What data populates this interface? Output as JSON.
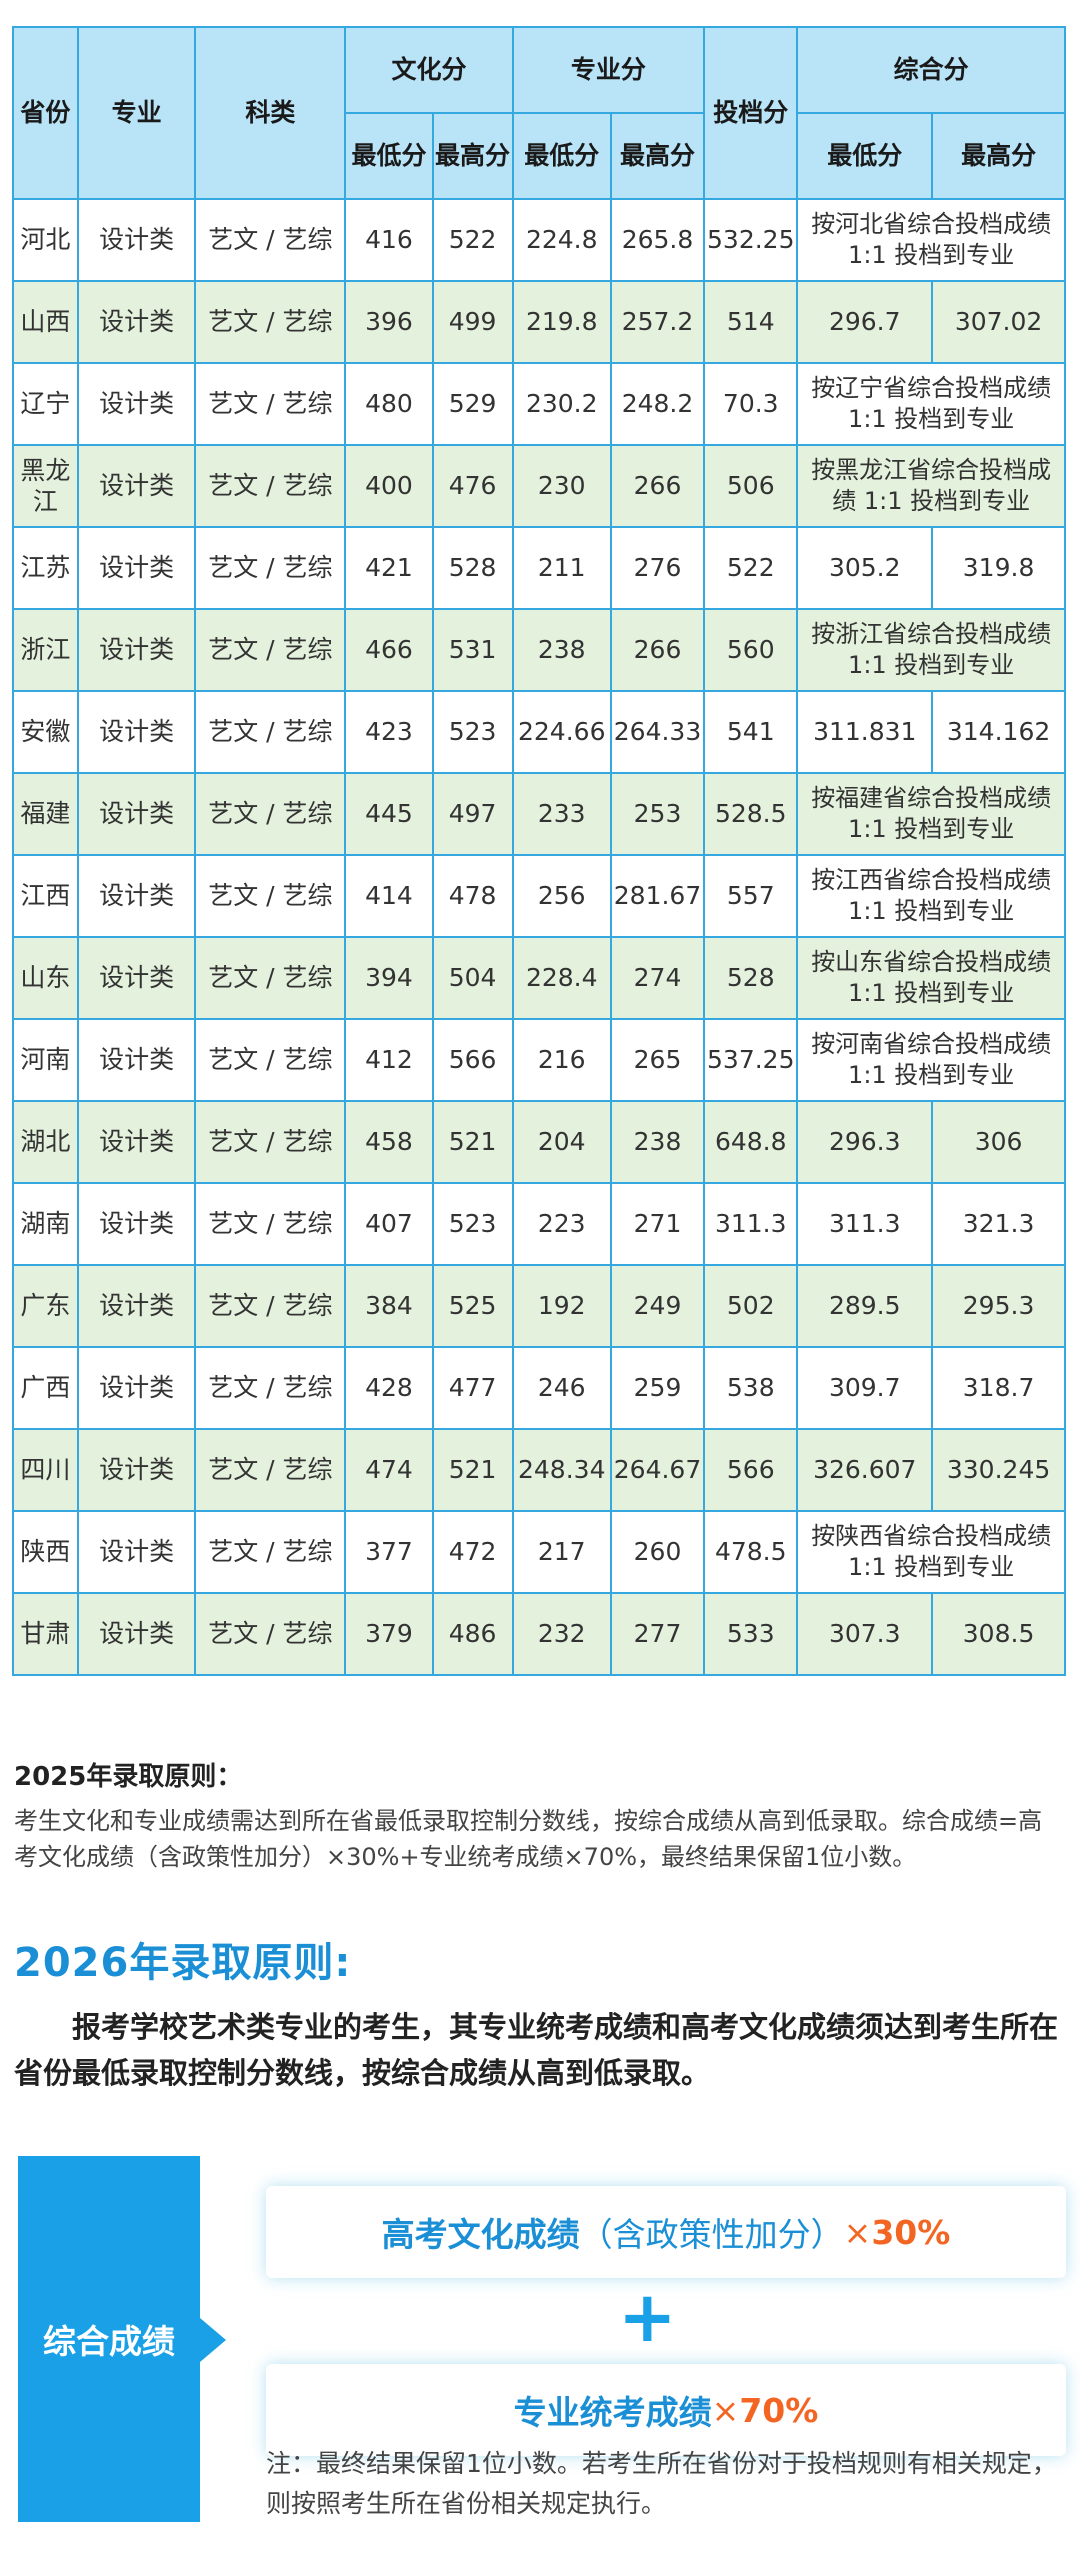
{
  "table": {
    "headers": {
      "province": "省份",
      "major": "专业",
      "category": "科类",
      "culture": "文化分",
      "professional": "专业分",
      "filing": "投档分",
      "composite": "综合分",
      "min": "最低分",
      "max": "最高分"
    },
    "rows": [
      {
        "province": "河北",
        "major": "设计类",
        "category": "艺文 / 艺综",
        "culture_min": "416",
        "culture_max": "522",
        "prof_min": "224.8",
        "prof_max": "265.8",
        "filing": "532.25",
        "comp_min": "",
        "comp_max": "",
        "comp_note": "按河北省综合投档成绩1:1 投档到专业"
      },
      {
        "province": "山西",
        "major": "设计类",
        "category": "艺文 / 艺综",
        "culture_min": "396",
        "culture_max": "499",
        "prof_min": "219.8",
        "prof_max": "257.2",
        "filing": "514",
        "comp_min": "296.7",
        "comp_max": "307.02",
        "comp_note": ""
      },
      {
        "province": "辽宁",
        "major": "设计类",
        "category": "艺文 / 艺综",
        "culture_min": "480",
        "culture_max": "529",
        "prof_min": "230.2",
        "prof_max": "248.2",
        "filing": "70.3",
        "comp_min": "",
        "comp_max": "",
        "comp_note": "按辽宁省综合投档成绩1:1 投档到专业"
      },
      {
        "province": "黑龙江",
        "major": "设计类",
        "category": "艺文 / 艺综",
        "culture_min": "400",
        "culture_max": "476",
        "prof_min": "230",
        "prof_max": "266",
        "filing": "506",
        "comp_min": "",
        "comp_max": "",
        "comp_note": "按黑龙江省综合投档成绩 1:1 投档到专业"
      },
      {
        "province": "江苏",
        "major": "设计类",
        "category": "艺文 / 艺综",
        "culture_min": "421",
        "culture_max": "528",
        "prof_min": "211",
        "prof_max": "276",
        "filing": "522",
        "comp_min": "305.2",
        "comp_max": "319.8",
        "comp_note": ""
      },
      {
        "province": "浙江",
        "major": "设计类",
        "category": "艺文 / 艺综",
        "culture_min": "466",
        "culture_max": "531",
        "prof_min": "238",
        "prof_max": "266",
        "filing": "560",
        "comp_min": "",
        "comp_max": "",
        "comp_note": "按浙江省综合投档成绩1:1 投档到专业"
      },
      {
        "province": "安徽",
        "major": "设计类",
        "category": "艺文 / 艺综",
        "culture_min": "423",
        "culture_max": "523",
        "prof_min": "224.66",
        "prof_max": "264.33",
        "filing": "541",
        "comp_min": "311.831",
        "comp_max": "314.162",
        "comp_note": ""
      },
      {
        "province": "福建",
        "major": "设计类",
        "category": "艺文 / 艺综",
        "culture_min": "445",
        "culture_max": "497",
        "prof_min": "233",
        "prof_max": "253",
        "filing": "528.5",
        "comp_min": "",
        "comp_max": "",
        "comp_note": "按福建省综合投档成绩1:1 投档到专业"
      },
      {
        "province": "江西",
        "major": "设计类",
        "category": "艺文 / 艺综",
        "culture_min": "414",
        "culture_max": "478",
        "prof_min": "256",
        "prof_max": "281.67",
        "filing": "557",
        "comp_min": "",
        "comp_max": "",
        "comp_note": "按江西省综合投档成绩1:1 投档到专业"
      },
      {
        "province": "山东",
        "major": "设计类",
        "category": "艺文 / 艺综",
        "culture_min": "394",
        "culture_max": "504",
        "prof_min": "228.4",
        "prof_max": "274",
        "filing": "528",
        "comp_min": "",
        "comp_max": "",
        "comp_note": "按山东省综合投档成绩1:1 投档到专业"
      },
      {
        "province": "河南",
        "major": "设计类",
        "category": "艺文 / 艺综",
        "culture_min": "412",
        "culture_max": "566",
        "prof_min": "216",
        "prof_max": "265",
        "filing": "537.25",
        "comp_min": "",
        "comp_max": "",
        "comp_note": "按河南省综合投档成绩1:1 投档到专业"
      },
      {
        "province": "湖北",
        "major": "设计类",
        "category": "艺文 / 艺综",
        "culture_min": "458",
        "culture_max": "521",
        "prof_min": "204",
        "prof_max": "238",
        "filing": "648.8",
        "comp_min": "296.3",
        "comp_max": "306",
        "comp_note": ""
      },
      {
        "province": "湖南",
        "major": "设计类",
        "category": "艺文 / 艺综",
        "culture_min": "407",
        "culture_max": "523",
        "prof_min": "223",
        "prof_max": "271",
        "filing": "311.3",
        "comp_min": "311.3",
        "comp_max": "321.3",
        "comp_note": ""
      },
      {
        "province": "广东",
        "major": "设计类",
        "category": "艺文 / 艺综",
        "culture_min": "384",
        "culture_max": "525",
        "prof_min": "192",
        "prof_max": "249",
        "filing": "502",
        "comp_min": "289.5",
        "comp_max": "295.3",
        "comp_note": ""
      },
      {
        "province": "广西",
        "major": "设计类",
        "category": "艺文 / 艺综",
        "culture_min": "428",
        "culture_max": "477",
        "prof_min": "246",
        "prof_max": "259",
        "filing": "538",
        "comp_min": "309.7",
        "comp_max": "318.7",
        "comp_note": ""
      },
      {
        "province": "四川",
        "major": "设计类",
        "category": "艺文 / 艺综",
        "culture_min": "474",
        "culture_max": "521",
        "prof_min": "248.34",
        "prof_max": "264.67",
        "filing": "566",
        "comp_min": "326.607",
        "comp_max": "330.245",
        "comp_note": ""
      },
      {
        "province": "陕西",
        "major": "设计类",
        "category": "艺文 / 艺综",
        "culture_min": "377",
        "culture_max": "472",
        "prof_min": "217",
        "prof_max": "260",
        "filing": "478.5",
        "comp_min": "",
        "comp_max": "",
        "comp_note": "按陕西省综合投档成绩1:1 投档到专业"
      },
      {
        "province": "甘肃",
        "major": "设计类",
        "category": "艺文 / 艺综",
        "culture_min": "379",
        "culture_max": "486",
        "prof_min": "232",
        "prof_max": "277",
        "filing": "533",
        "comp_min": "307.3",
        "comp_max": "308.5",
        "comp_note": ""
      }
    ]
  },
  "rule_2025": {
    "title": "2025年录取原则：",
    "body": "考生文化和专业成绩需达到所在省最低录取控制分数线，按综合成绩从高到低录取。综合成绩=高考文化成绩（含政策性加分）×30%+专业统考成绩×70%，最终结果保留1位小数。"
  },
  "rule_2026": {
    "title": "2026年录取原则:",
    "body": "报考学校艺术类专业的考生，其专业统考成绩和高考文化成绩须达到考生所在省份最低录取控制分数线，按综合成绩从高到低录取。"
  },
  "formula": {
    "label": "综合成绩",
    "term1_name": "高考文化成绩",
    "term1_paren": "（含政策性加分）",
    "term1_times": "×",
    "term1_pct": "30%",
    "plus": "+",
    "term2_name": "专业统考成绩",
    "term2_times": "×",
    "term2_pct": "70%",
    "note": "注：最终结果保留1位小数。若考生所在省份对于投档规则有相关规定，则按照考生所在省份相关规定执行。"
  },
  "colors": {
    "header_bg": "#b9e4f8",
    "border": "#36a8e0",
    "stripe": "#e4f1dd",
    "accent_blue": "#1aa0e6",
    "accent_orange": "#f26522"
  }
}
